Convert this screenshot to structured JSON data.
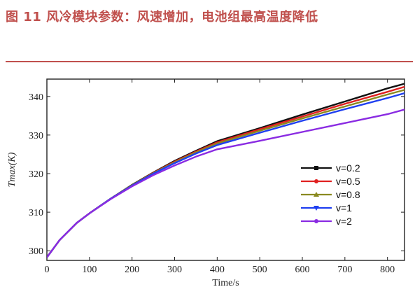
{
  "figure": {
    "title": "图 11 风冷模块参数：风速增加，电池组最高温度降低"
  },
  "chart_data": {
    "type": "line",
    "xlabel": "Time/s",
    "ylabel": "Tmax(K)",
    "xlim": [
      0,
      840
    ],
    "ylim": [
      297.5,
      344.5
    ],
    "xticks": [
      0,
      100,
      200,
      300,
      400,
      500,
      600,
      700,
      800
    ],
    "xtick_labels": [
      "0",
      "100",
      "200",
      "300",
      "400",
      "500",
      "600",
      "700",
      "800"
    ],
    "yticks": [
      300,
      310,
      320,
      330,
      340
    ],
    "ytick_labels": [
      "300",
      "310",
      "320",
      "330",
      "340"
    ],
    "legend_position": "middle-right",
    "grid": false,
    "series": [
      {
        "name": "v=0.2",
        "color": "#111111",
        "marker": "square",
        "x": [
          0,
          30,
          70,
          100,
          150,
          200,
          250,
          300,
          350,
          400,
          500,
          600,
          700,
          800,
          870
        ],
        "y": [
          298.3,
          302.8,
          307.2,
          309.7,
          313.5,
          317.1,
          320.3,
          323.3,
          325.9,
          328.4,
          331.8,
          335.3,
          338.7,
          342.1,
          344.2
        ]
      },
      {
        "name": "v=0.5",
        "color": "#e02020",
        "marker": "circle",
        "x": [
          0,
          30,
          70,
          100,
          150,
          200,
          250,
          300,
          350,
          400,
          500,
          600,
          700,
          800,
          870
        ],
        "y": [
          298.3,
          302.8,
          307.2,
          309.7,
          313.5,
          317.0,
          320.2,
          323.1,
          325.7,
          328.1,
          331.5,
          334.8,
          338.1,
          341.2,
          343.5
        ]
      },
      {
        "name": "v=0.8",
        "color": "#8a8a20",
        "marker": "triangle",
        "x": [
          0,
          30,
          70,
          100,
          150,
          200,
          250,
          300,
          350,
          400,
          500,
          600,
          700,
          800,
          870
        ],
        "y": [
          298.3,
          302.8,
          307.2,
          309.7,
          313.5,
          317.0,
          320.1,
          322.9,
          325.5,
          327.8,
          331.1,
          334.3,
          337.4,
          340.5,
          342.6
        ]
      },
      {
        "name": "v=1",
        "color": "#1f3ff0",
        "marker": "triangle-down",
        "x": [
          0,
          30,
          70,
          100,
          150,
          200,
          250,
          300,
          350,
          400,
          500,
          600,
          700,
          800,
          870
        ],
        "y": [
          298.3,
          302.8,
          307.2,
          309.7,
          313.5,
          316.9,
          320.0,
          322.7,
          325.2,
          327.4,
          330.6,
          333.7,
          336.7,
          339.6,
          341.8
        ]
      },
      {
        "name": "v=2",
        "color": "#8a2be2",
        "marker": "circle",
        "x": [
          0,
          30,
          70,
          100,
          150,
          200,
          250,
          300,
          350,
          400,
          500,
          600,
          700,
          800,
          870
        ],
        "y": [
          298.3,
          302.8,
          307.2,
          309.7,
          313.4,
          316.7,
          319.6,
          322.1,
          324.4,
          326.3,
          328.5,
          330.8,
          333.1,
          335.4,
          337.5
        ]
      }
    ]
  }
}
